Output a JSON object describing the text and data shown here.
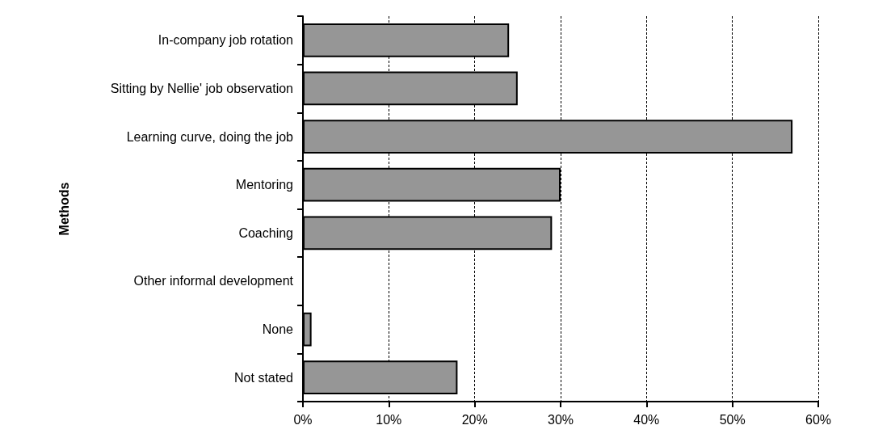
{
  "chart_data": {
    "type": "bar",
    "orientation": "horizontal",
    "ylabel": "Methods",
    "categories": [
      "In-company job rotation",
      "Sitting by Nellie' job observation",
      "Learning curve, doing the job",
      "Mentoring",
      "Coaching",
      "Other informal development",
      "None",
      "Not stated"
    ],
    "values": [
      24,
      25,
      57,
      30,
      29,
      0,
      1,
      18
    ],
    "color": "#969696",
    "xlim": [
      0,
      60
    ],
    "xticks": [
      {
        "value": 0,
        "label": "0%"
      },
      {
        "value": 10,
        "label": "10%"
      },
      {
        "value": 20,
        "label": "20%"
      },
      {
        "value": 30,
        "label": "30%"
      },
      {
        "value": 40,
        "label": "40%"
      },
      {
        "value": 50,
        "label": "50%"
      },
      {
        "value": 60,
        "label": "60%"
      }
    ],
    "grid": "x"
  }
}
